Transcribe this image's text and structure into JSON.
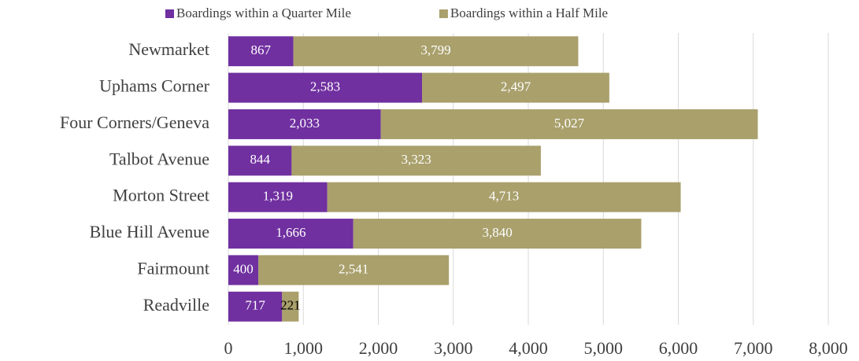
{
  "chart_data": {
    "type": "stacked_barh",
    "categories": [
      "Newmarket",
      "Uphams Corner",
      "Four Corners/Geneva",
      "Talbot Avenue",
      "Morton Street",
      "Blue Hill Avenue",
      "Fairmount",
      "Readville"
    ],
    "series": [
      {
        "name": "Boardings within a Quarter Mile",
        "color": "#7030a0",
        "values": [
          867,
          2583,
          2033,
          844,
          1319,
          1666,
          400,
          717
        ],
        "value_labels": [
          "867",
          "2,583",
          "2,033",
          "844",
          "1,319",
          "1,666",
          "400",
          "717"
        ]
      },
      {
        "name": "Boardings within a Half Mile",
        "color": "#a9a06c",
        "values": [
          3799,
          2497,
          5027,
          3323,
          4713,
          3840,
          2541,
          221
        ],
        "value_labels": [
          "3,799",
          "2,497",
          "5,027",
          "3,323",
          "4,713",
          "3,840",
          "2,541",
          "221"
        ]
      }
    ],
    "xlim": [
      0,
      8000
    ],
    "xticks": [
      0,
      {
        "value": 1000,
        "label": "1,000"
      },
      {
        "value": 2000,
        "label": "2,000"
      },
      {
        "value": 3000,
        "label": "3,000"
      },
      {
        "value": 4000,
        "label": "4,000"
      },
      {
        "value": 5000,
        "label": "5,000"
      },
      {
        "value": 6000,
        "label": "6,000"
      },
      {
        "value": 7000,
        "label": "7,000"
      },
      {
        "value": 8000,
        "label": "8,000"
      }
    ],
    "grid": true,
    "legend": "top"
  }
}
